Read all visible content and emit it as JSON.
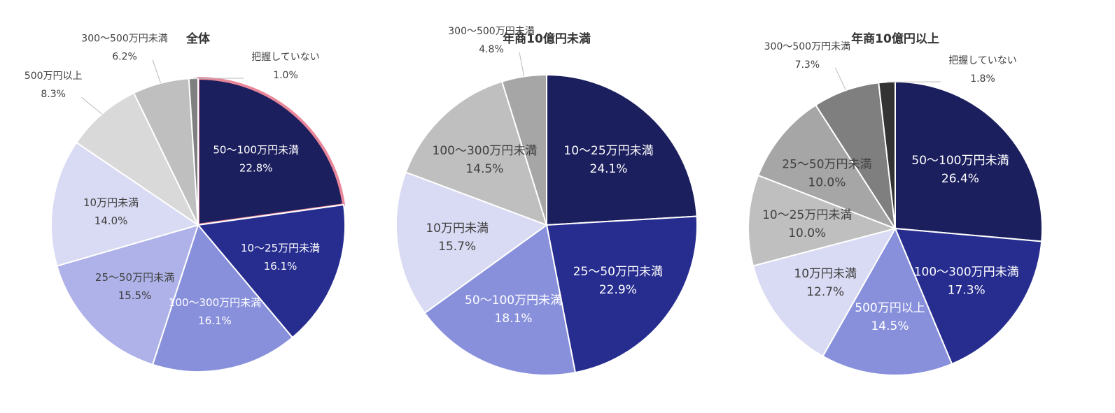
{
  "chart_data": [
    {
      "type": "pie",
      "title": "全体",
      "categories": [
        "50〜100万円未満",
        "10〜25万円未満",
        "100〜300万円未満",
        "25〜50万円未満",
        "10万円未満",
        "500万円以上",
        "300〜500万円未満",
        "把握していない"
      ],
      "values": [
        22.8,
        16.1,
        16.1,
        15.5,
        14.0,
        8.3,
        6.2,
        1.0
      ],
      "value_labels": [
        "22.8%",
        "16.1%",
        "16.1%",
        "15.5%",
        "14.0%",
        "8.3%",
        "6.2%",
        "1.0%"
      ],
      "colors": [
        "#1c1f5e",
        "#272d8f",
        "#8890dc",
        "#aeb2e8",
        "#d9daf3",
        "#d9d9d9",
        "#bfbfbf",
        "#7f7f7f"
      ],
      "highlight": 0
    },
    {
      "type": "pie",
      "title": "年商10億円未満",
      "categories": [
        "10〜25万円未満",
        "25〜50万円未満",
        "50〜100万円未満",
        "10万円未満",
        "100〜300万円未満",
        "300〜500万円未満"
      ],
      "values": [
        24.1,
        22.9,
        18.1,
        15.7,
        14.5,
        4.8
      ],
      "value_labels": [
        "24.1%",
        "22.9%",
        "18.1%",
        "15.7%",
        "14.5%",
        "4.8%"
      ],
      "colors": [
        "#1c1f5e",
        "#272d8f",
        "#8890dc",
        "#d9daf3",
        "#bfbfbf",
        "#a6a6a6"
      ]
    },
    {
      "type": "pie",
      "title": "年商10億円以上",
      "categories": [
        "50〜100万円未満",
        "100〜300万円未満",
        "500万円以上",
        "10万円未満",
        "10〜25万円未満",
        "25〜50万円未満",
        "300〜500万円未満",
        "把握していない"
      ],
      "values": [
        26.4,
        17.3,
        14.5,
        12.7,
        10.0,
        10.0,
        7.3,
        1.8
      ],
      "value_labels": [
        "26.4%",
        "17.3%",
        "14.5%",
        "12.7%",
        "10.0%",
        "10.0%",
        "7.3%",
        "1.8%"
      ],
      "colors": [
        "#1c1f5e",
        "#272d8f",
        "#8890dc",
        "#d9daf3",
        "#bfbfbf",
        "#a6a6a6",
        "#7f7f7f",
        "#333333"
      ]
    }
  ]
}
